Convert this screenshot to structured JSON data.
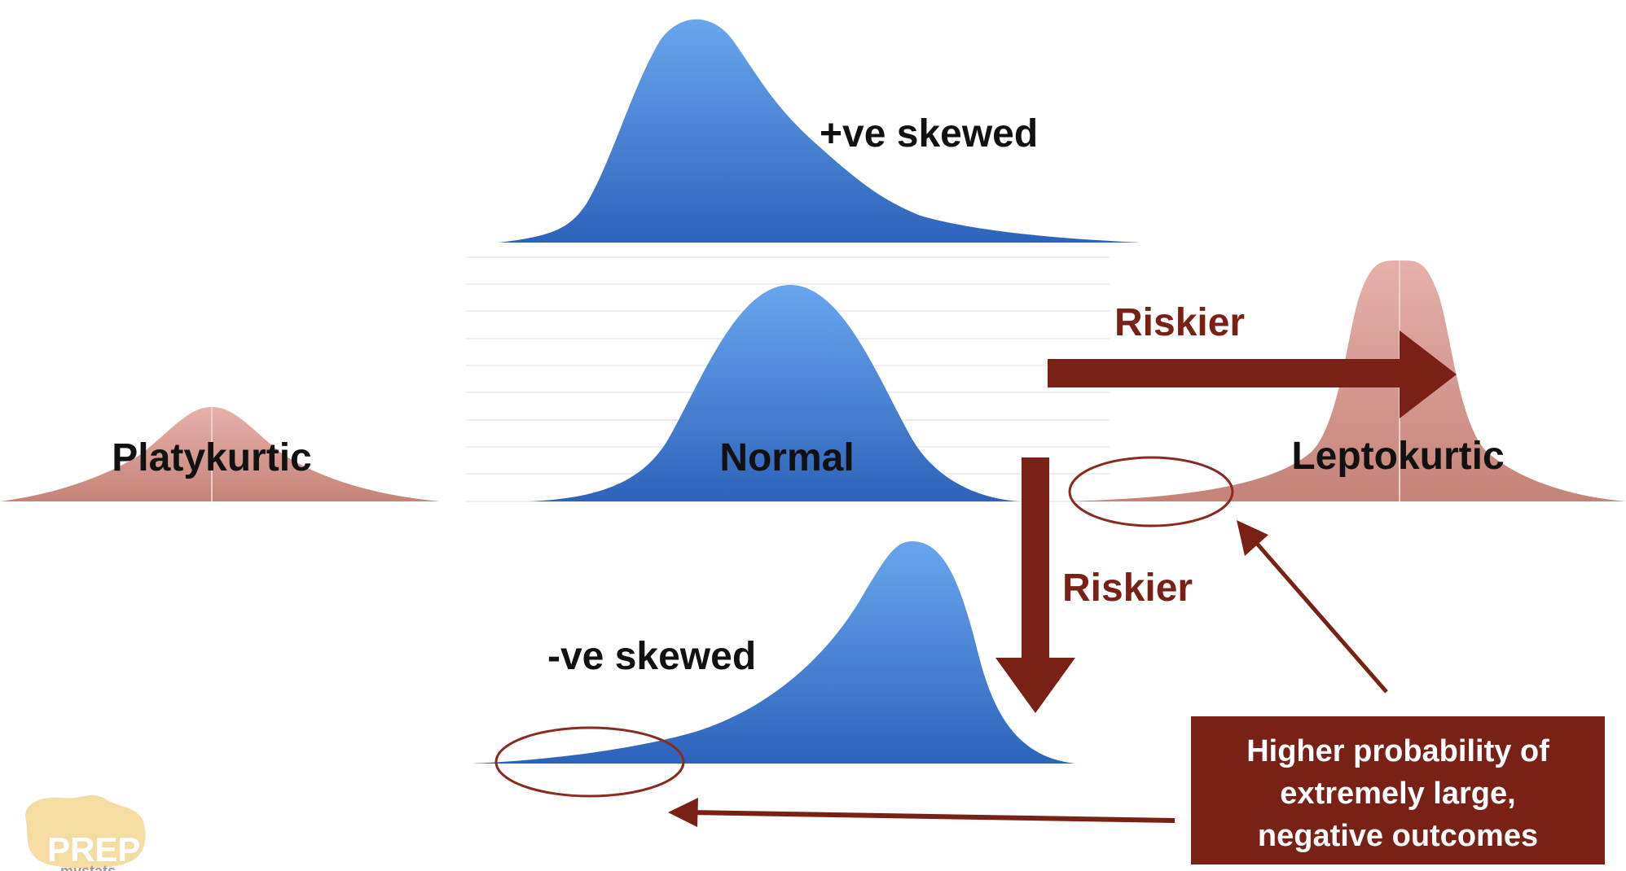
{
  "labels": {
    "positive_skew": "+ve skewed",
    "negative_skew": "-ve skewed",
    "normal": "Normal",
    "platykurtic": "Platykurtic",
    "leptokurtic": "Leptokurtic",
    "riskier_right": "Riskier",
    "riskier_down": "Riskier"
  },
  "callout": {
    "line1": "Higher probability of",
    "line2": "extremely large,",
    "line3": "negative outcomes"
  },
  "logo": {
    "text": "PREP",
    "subtext": "mystats"
  },
  "colors": {
    "blue_top": "#6aa6ee",
    "blue_bottom": "#2d63bb",
    "pink_top": "#e3aaa3",
    "pink_bottom": "#c7867c",
    "risk": "#7a2116",
    "callout_bg": "#7a2116",
    "logo": "#f4dca2"
  }
}
